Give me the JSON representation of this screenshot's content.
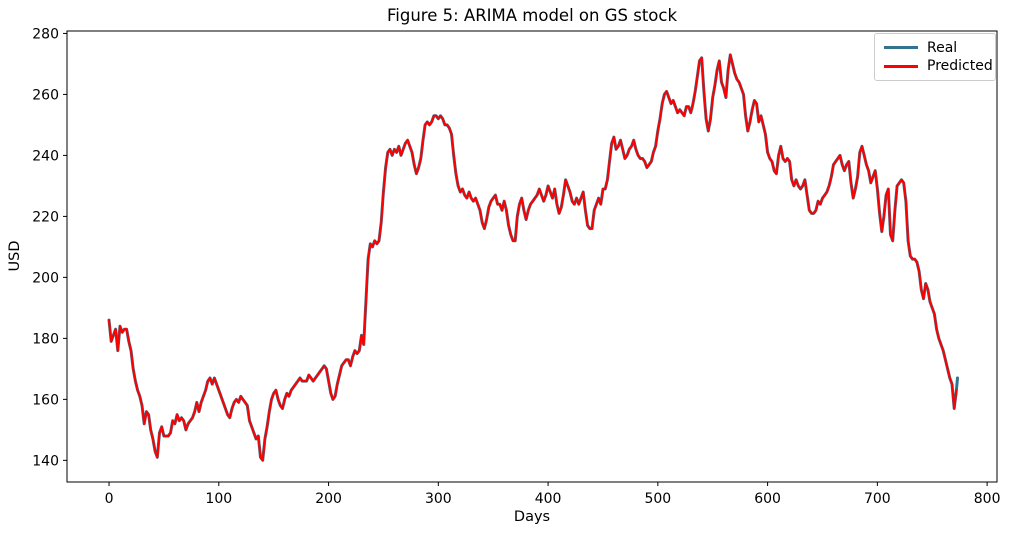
{
  "figure": {
    "title": "Figure 5: ARIMA model on GS stock",
    "xlabel": "Days",
    "ylabel": "USD"
  },
  "colors": {
    "real": "#31748f",
    "predicted": "#ff0000",
    "axis": "#000000",
    "legend_border": "#cccccc",
    "background": "#ffffff"
  },
  "chart_data": {
    "type": "line",
    "title": "Figure 5: ARIMA model on GS stock",
    "xlabel": "Days",
    "ylabel": "USD",
    "xlim": [
      -38.3,
      809
    ],
    "ylim": [
      132.9,
      280.8
    ],
    "xticks": [
      0,
      100,
      200,
      300,
      400,
      500,
      600,
      700,
      800
    ],
    "yticks": [
      140,
      160,
      180,
      200,
      220,
      240,
      260,
      280
    ],
    "grid": false,
    "legend_position": "upper right",
    "x_start": 0,
    "x_step": 2,
    "series": [
      {
        "name": "Real",
        "color": "#31748f",
        "values": [
          186,
          179,
          181,
          183,
          176,
          184,
          182,
          183,
          183,
          179,
          176,
          170,
          166,
          163,
          161,
          158,
          152,
          156,
          155,
          150,
          147,
          143,
          141,
          149,
          151,
          148,
          148,
          148,
          149,
          153,
          152,
          155,
          153,
          154,
          153,
          150,
          152,
          153,
          154,
          156,
          159,
          156,
          159,
          161,
          163,
          166,
          167,
          165,
          167,
          165,
          163,
          161,
          159,
          157,
          155,
          154,
          157,
          159,
          160,
          159,
          161,
          160,
          159,
          158,
          153,
          151,
          149,
          147,
          148,
          141,
          140,
          147,
          151,
          156,
          160,
          162,
          163,
          160,
          158,
          157,
          160,
          162,
          161,
          163,
          164,
          165,
          166,
          167,
          166,
          166,
          166,
          168,
          167,
          166,
          167,
          168,
          169,
          170,
          171,
          170,
          166,
          162,
          160,
          161,
          165,
          168,
          171,
          172,
          173,
          173,
          171,
          174,
          176,
          175,
          176,
          181,
          178,
          192,
          206,
          211,
          210,
          212,
          211,
          212,
          218,
          228,
          236,
          241,
          242,
          240,
          242,
          241,
          243,
          240,
          242,
          244,
          245,
          243,
          241,
          237,
          234,
          236,
          239,
          245,
          250,
          251,
          250,
          251,
          253,
          253,
          252,
          253,
          252,
          250,
          250,
          249,
          247,
          240,
          234,
          230,
          228,
          229,
          227,
          226,
          228,
          226,
          225,
          226,
          224,
          222,
          218,
          216,
          219,
          223,
          225,
          226,
          227,
          224,
          224,
          222,
          225,
          222,
          217,
          214,
          212,
          212,
          220,
          224,
          226,
          222,
          219,
          222,
          224,
          225,
          226,
          227,
          229,
          227,
          225,
          227,
          230,
          228,
          226,
          229,
          224,
          221,
          223,
          227,
          232,
          230,
          228,
          225,
          224,
          226,
          224,
          226,
          228,
          222,
          217,
          216,
          216,
          222,
          224,
          226,
          224,
          229,
          229,
          232,
          238,
          244,
          246,
          242,
          243,
          245,
          242,
          239,
          240,
          242,
          243,
          245,
          242,
          240,
          239,
          239,
          238,
          236,
          237,
          238,
          241,
          243,
          248,
          252,
          257,
          260,
          261,
          259,
          257,
          258,
          256,
          254,
          255,
          254,
          253,
          256,
          256,
          254,
          257,
          261,
          266,
          271,
          272,
          261,
          252,
          248,
          252,
          259,
          263,
          268,
          271,
          264,
          262,
          259,
          268,
          273,
          270,
          267,
          265,
          264,
          262,
          260,
          253,
          248,
          251,
          255,
          258,
          257,
          251,
          253,
          250,
          247,
          241,
          239,
          238,
          235,
          234,
          240,
          243,
          239,
          238,
          239,
          238,
          232,
          230,
          232,
          230,
          229,
          230,
          232,
          227,
          222,
          221,
          221,
          222,
          225,
          224,
          226,
          227,
          228,
          230,
          233,
          237,
          238,
          239,
          240,
          237,
          235,
          237,
          238,
          231,
          226,
          229,
          233,
          241,
          243,
          240,
          237,
          235,
          231,
          233,
          235,
          229,
          221,
          215,
          220,
          227,
          229,
          214,
          212,
          222,
          230,
          231,
          232,
          231,
          225,
          212,
          207,
          206,
          206,
          205,
          202,
          196,
          193,
          198,
          196,
          192,
          190,
          188,
          183,
          180,
          178,
          176,
          173,
          170,
          167,
          165,
          157,
          163
        ],
        "tail": [
          [
            773,
            167
          ]
        ]
      },
      {
        "name": "Predicted",
        "color": "#ff0000",
        "values": "same_as_Real",
        "tail": []
      }
    ]
  }
}
